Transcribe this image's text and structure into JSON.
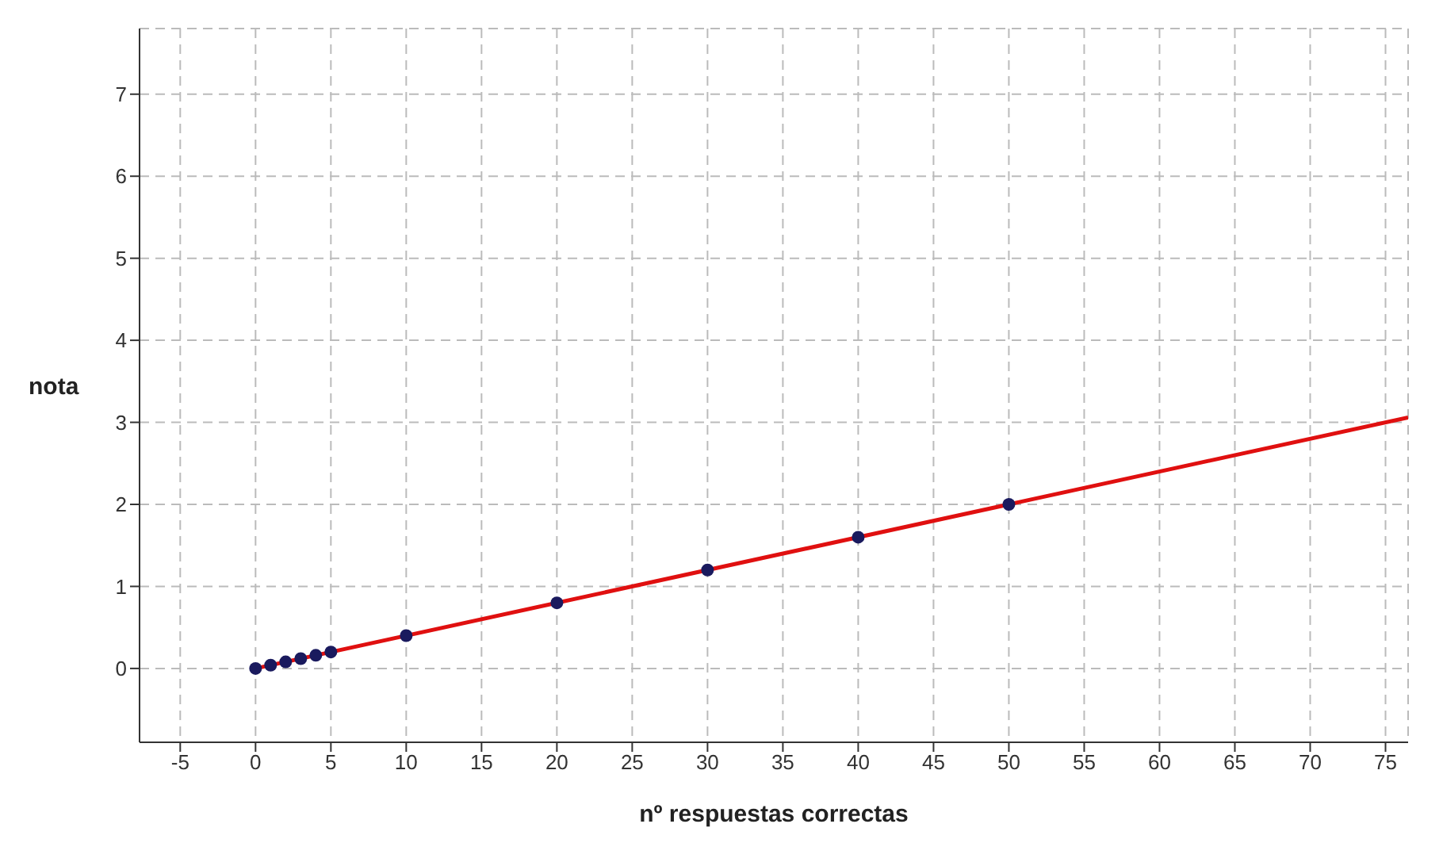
{
  "chart_data": {
    "type": "scatter",
    "xlabel": "nº respuestas correctas",
    "ylabel": "nota",
    "xlim": [
      -7.7,
      76.5
    ],
    "ylim": [
      -0.9,
      7.8
    ],
    "xticks": [
      -5,
      0,
      5,
      10,
      15,
      20,
      25,
      30,
      35,
      40,
      45,
      50,
      55,
      60,
      65,
      70,
      75
    ],
    "yticks": [
      0,
      1,
      2,
      3,
      4,
      5,
      6,
      7
    ],
    "grid": true,
    "marker": "circle",
    "series": [
      {
        "type": "line",
        "color": "#e01010",
        "x": [
          0,
          76.5
        ],
        "values": [
          0,
          3.06
        ],
        "marker": "none",
        "line_style": "solid"
      },
      {
        "color": "#1a1a5e",
        "x": [
          0,
          1,
          2,
          3,
          4,
          5,
          10,
          20,
          30,
          40,
          50
        ],
        "values": [
          0,
          0.04,
          0.08,
          0.12,
          0.16,
          0.2,
          0.4,
          0.8,
          1.2,
          1.6,
          2
        ]
      }
    ]
  }
}
